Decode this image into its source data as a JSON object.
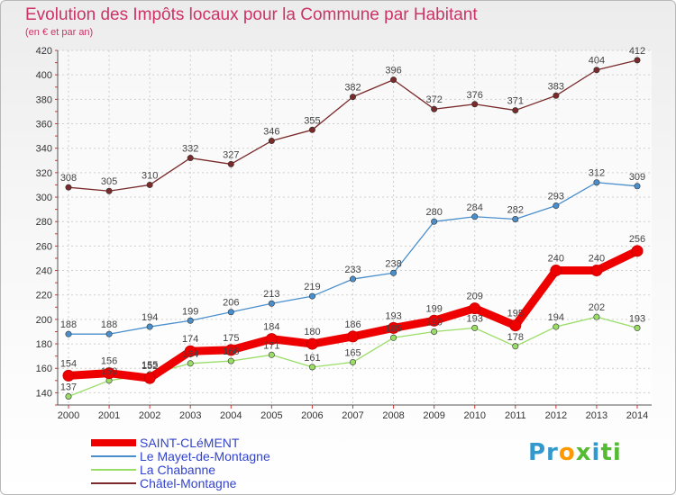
{
  "header": {
    "title": "Evolution des Impôts locaux pour la Commune par Habitant",
    "subtitle": "(en € et par an)"
  },
  "logo": {
    "parts": [
      "Pr",
      "o",
      "x",
      "i",
      "ti"
    ],
    "colors": [
      "#3399cc",
      "#ff9900",
      "#55bb33",
      "#3399cc",
      "#55bb33"
    ]
  },
  "chart_data": {
    "type": "line",
    "title": "Evolution des Impôts locaux pour la Commune par Habitant",
    "subtitle": "(en € et par an)",
    "xlabel": "",
    "ylabel": "",
    "ylim": [
      130,
      420
    ],
    "yticks": [
      140,
      160,
      180,
      200,
      220,
      240,
      260,
      280,
      300,
      320,
      340,
      360,
      380,
      400,
      420
    ],
    "x": [
      "2000",
      "2001",
      "2002",
      "2003",
      "2004",
      "2005",
      "2006",
      "2007",
      "2008",
      "2009",
      "2010",
      "2011",
      "2012",
      "2013",
      "2014"
    ],
    "grid": true,
    "legend_position": "bottom-left",
    "series": [
      {
        "name": "SAINT-CLéMENT",
        "color": "#ee0000",
        "emphasis": true,
        "values": [
          154,
          156,
          152,
          174,
          175,
          184,
          180,
          186,
          193,
          199,
          209,
          195,
          240,
          240,
          256
        ]
      },
      {
        "name": "Le Mayet-de-Montagne",
        "color": "#4a8fcc",
        "emphasis": false,
        "values": [
          188,
          188,
          194,
          199,
          206,
          213,
          219,
          233,
          238,
          280,
          284,
          282,
          293,
          312,
          309
        ]
      },
      {
        "name": "La Chabanne",
        "color": "#99dd66",
        "emphasis": false,
        "values": [
          137,
          150,
          155,
          164,
          166,
          171,
          161,
          165,
          185,
          190,
          193,
          178,
          194,
          202,
          193
        ]
      },
      {
        "name": "Châtel-Montagne",
        "color": "#7a2a2a",
        "emphasis": false,
        "values": [
          308,
          305,
          310,
          332,
          327,
          346,
          355,
          382,
          396,
          372,
          376,
          371,
          383,
          404,
          412
        ]
      }
    ]
  }
}
